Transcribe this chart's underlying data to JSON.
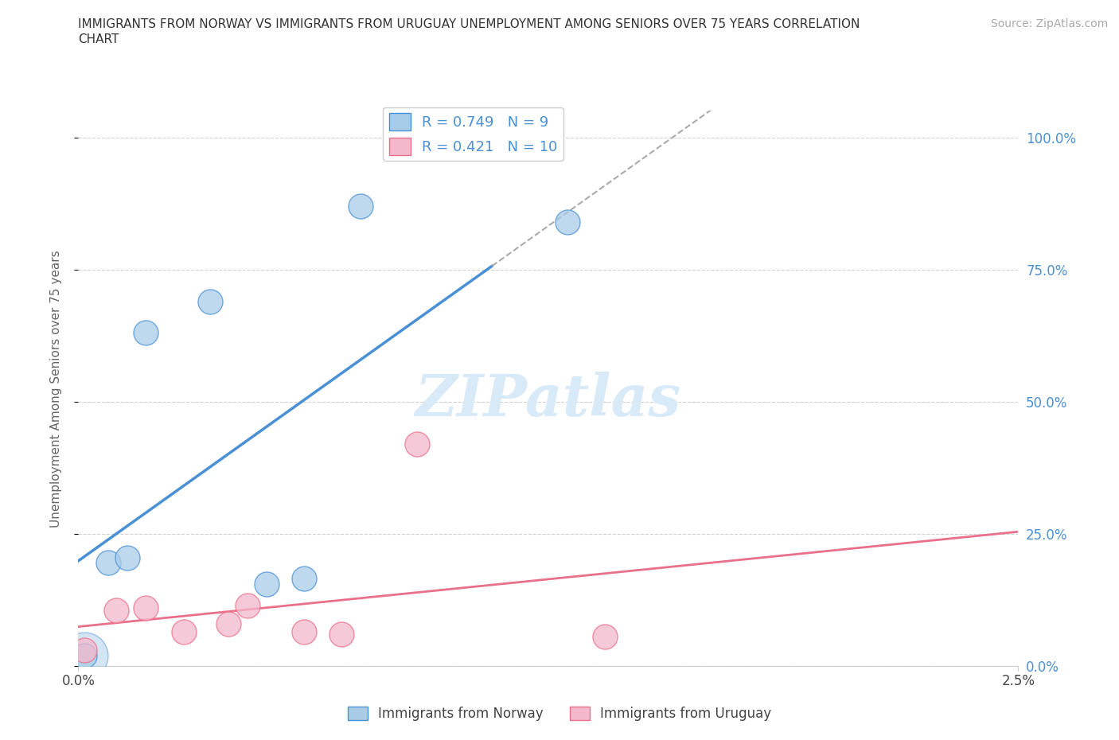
{
  "title_line1": "IMMIGRANTS FROM NORWAY VS IMMIGRANTS FROM URUGUAY UNEMPLOYMENT AMONG SENIORS OVER 75 YEARS CORRELATION",
  "title_line2": "CHART",
  "source": "Source: ZipAtlas.com",
  "ylabel": "Unemployment Among Seniors over 75 years",
  "xlim": [
    0.0,
    0.025
  ],
  "ylim": [
    0.0,
    1.05
  ],
  "yticks": [
    0.0,
    0.25,
    0.5,
    0.75,
    1.0
  ],
  "ytick_labels_right": [
    "0.0%",
    "25.0%",
    "50.0%",
    "75.0%",
    "100.0%"
  ],
  "xticks": [
    0.0,
    0.025
  ],
  "xtick_labels": [
    "0.0%",
    "2.5%"
  ],
  "norway_x": [
    0.00015,
    0.0008,
    0.0013,
    0.0018,
    0.0035,
    0.005,
    0.006,
    0.0075,
    0.013
  ],
  "norway_y": [
    0.02,
    0.195,
    0.205,
    0.63,
    0.69,
    0.155,
    0.165,
    0.87,
    0.84
  ],
  "uruguay_x": [
    0.00015,
    0.001,
    0.0018,
    0.0028,
    0.004,
    0.0045,
    0.006,
    0.007,
    0.009,
    0.014
  ],
  "uruguay_y": [
    0.03,
    0.105,
    0.11,
    0.065,
    0.08,
    0.115,
    0.065,
    0.06,
    0.42,
    0.055
  ],
  "norway_R": 0.749,
  "norway_N": 9,
  "uruguay_R": 0.421,
  "uruguay_N": 10,
  "norway_color": "#a8cce8",
  "uruguay_color": "#f4b8cc",
  "norway_edge_color": "#4a90d4",
  "uruguay_edge_color": "#e8708a",
  "norway_line_color": "#4a90d4",
  "uruguay_line_color": "#e8708a",
  "background_color": "#ffffff",
  "grid_color": "#cccccc",
  "watermark_color": "#d8eaf8"
}
